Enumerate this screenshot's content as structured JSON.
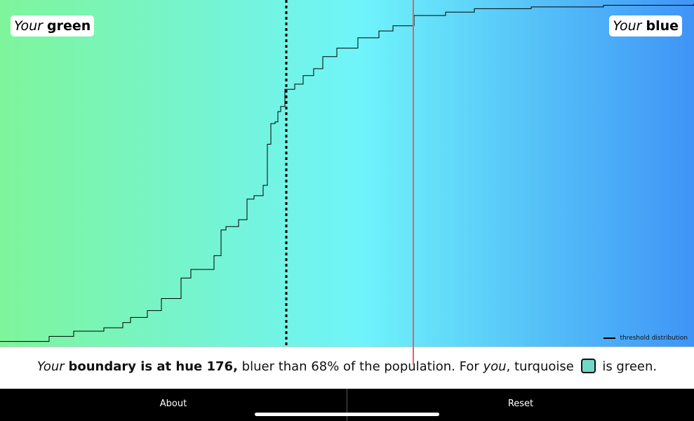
{
  "labels": {
    "green_prefix": "Your",
    "green_word": "green",
    "blue_prefix": "Your",
    "blue_word": "blue"
  },
  "legend": {
    "label": "threshold distribution"
  },
  "result": {
    "prefix": "Your",
    "bold": "boundary is at hue 176,",
    "middle": "bluer than 68% of the population. For",
    "you": "you",
    "turquoise": ", turquoise",
    "end": "is green.",
    "chip_color": "#6fd9c6"
  },
  "buttons": {
    "about": "About",
    "reset": "Reset"
  },
  "colors": {
    "gradient_left": "#7ef59b",
    "gradient_mid": "#6ff4fb",
    "gradient_right": "#3f94f6",
    "median_line": "#000000",
    "user_line": "#e06363"
  },
  "chart_data": {
    "type": "line",
    "series": [
      {
        "name": "threshold distribution",
        "x": [
          0,
          70,
          105,
          148,
          175,
          186,
          210,
          230,
          258,
          272,
          305,
          315,
          322,
          340,
          352,
          362,
          375,
          381,
          386,
          392,
          396,
          400,
          406,
          420,
          432,
          447,
          460,
          480,
          510,
          540,
          560,
          590,
          635,
          676,
          757,
          860,
          989
        ],
        "y": [
          0.015,
          0.03,
          0.045,
          0.055,
          0.07,
          0.085,
          0.105,
          0.14,
          0.2,
          0.225,
          0.265,
          0.34,
          0.35,
          0.37,
          0.43,
          0.44,
          0.47,
          0.59,
          0.65,
          0.655,
          0.685,
          0.7,
          0.75,
          0.765,
          0.79,
          0.81,
          0.845,
          0.87,
          0.9,
          0.92,
          0.935,
          0.965,
          0.975,
          0.985,
          0.99,
          0.995,
          1.0
        ]
      }
    ],
    "xlim": [
      0,
      989
    ],
    "ylim": [
      0,
      1
    ],
    "median_x": 408,
    "user_x": 589,
    "grid": false,
    "legend_position": "bottom-right"
  }
}
